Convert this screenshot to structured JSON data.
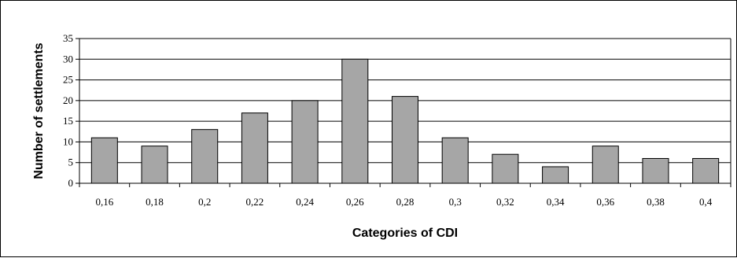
{
  "chart_data": {
    "type": "bar",
    "categories": [
      "0,16",
      "0,18",
      "0,2",
      "0,22",
      "0,24",
      "0,26",
      "0,28",
      "0,3",
      "0,32",
      "0,34",
      "0,36",
      "0,38",
      "0,4"
    ],
    "values": [
      11,
      9,
      13,
      17,
      20,
      30,
      21,
      11,
      7,
      4,
      9,
      6,
      6
    ],
    "xlabel": "Categories of CDI",
    "ylabel": "Number of settlements",
    "ylim": [
      0,
      35
    ],
    "yticks": [
      "0",
      "5",
      "10",
      "15",
      "20",
      "25",
      "30",
      "35"
    ],
    "grid": true,
    "legend": "none",
    "colors": {
      "bar": "#a6a6a6",
      "bar_border": "#000000",
      "grid": "#000000"
    }
  }
}
